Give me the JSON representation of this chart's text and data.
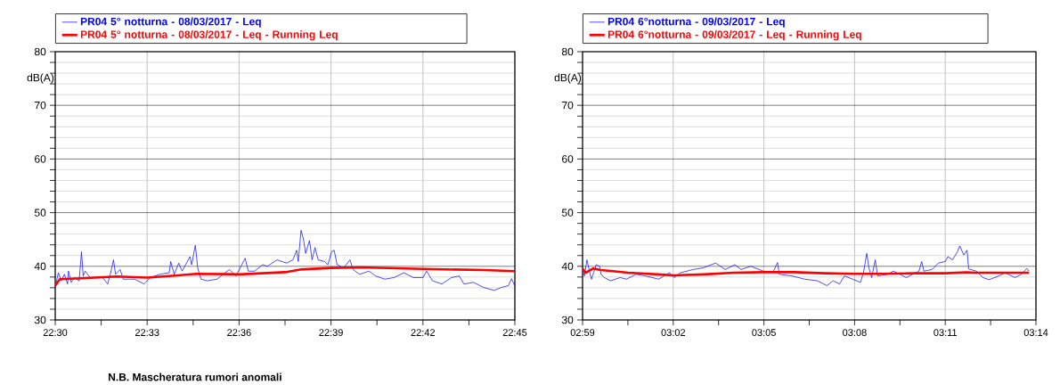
{
  "chart_data": [
    {
      "type": "line",
      "ylabel": "dB(A)",
      "legend": "top",
      "grid": true,
      "xlim": [
        22.5,
        22.75
      ],
      "ylim": [
        30,
        80
      ],
      "xticks": [
        {
          "value": 22.5,
          "label": "22:30"
        },
        {
          "value": 22.525,
          "label": null
        },
        {
          "value": 22.55,
          "label": "22:33"
        },
        {
          "value": 22.575,
          "label": null
        },
        {
          "value": 22.6,
          "label": "22:36"
        },
        {
          "value": 22.625,
          "label": null
        },
        {
          "value": 22.65,
          "label": "22:39"
        },
        {
          "value": 22.675,
          "label": null
        },
        {
          "value": 22.7,
          "label": "22:42"
        },
        {
          "value": 22.725,
          "label": null
        },
        {
          "value": 22.75,
          "label": "22:45"
        }
      ],
      "yticks": [
        30,
        {
          "value": 32,
          "label": null
        },
        {
          "value": 34,
          "label": null
        },
        {
          "value": 36,
          "label": null
        },
        {
          "value": 38,
          "label": null
        },
        40,
        {
          "value": 42,
          "label": null
        },
        {
          "value": 44,
          "label": null
        },
        {
          "value": 46,
          "label": null
        },
        {
          "value": 48,
          "label": null
        },
        50,
        {
          "value": 52,
          "label": null
        },
        {
          "value": 54,
          "label": null
        },
        {
          "value": 56,
          "label": null
        },
        {
          "value": 58,
          "label": null
        },
        60,
        {
          "value": 62,
          "label": null
        },
        {
          "value": 64,
          "label": null
        },
        {
          "value": 66,
          "label": null
        },
        {
          "value": 68,
          "label": null
        },
        70,
        {
          "value": 72,
          "label": null
        },
        {
          "value": 74,
          "label": null
        },
        {
          "value": 76,
          "label": null
        },
        {
          "value": 78,
          "label": null
        },
        80
      ],
      "annotations": [
        "N.B. Mascheratura rumori anomali"
      ],
      "series": [
        {
          "name": "PR04 5° notturna - 08/03/2017 - Leq",
          "color": "#0000ff",
          "x": [
            22.5,
            22.5017,
            22.5033,
            22.505,
            22.5067,
            22.5072,
            22.5087,
            22.5103,
            22.513,
            22.5143,
            22.5152,
            22.5163,
            22.519,
            22.5258,
            22.5285,
            22.5302,
            22.5317,
            22.5328,
            22.5353,
            22.537,
            22.5432,
            22.5483,
            22.5517,
            22.5568,
            22.562,
            22.5628,
            22.5647,
            22.5672,
            22.569,
            22.5733,
            22.5742,
            22.5762,
            22.5775,
            22.5793,
            22.5827,
            22.588,
            22.5913,
            22.5948,
            22.5983,
            22.6033,
            22.605,
            22.6085,
            22.6128,
            22.6153,
            22.6207,
            22.6258,
            22.6293,
            22.6313,
            22.6322,
            22.6337,
            22.635,
            22.6362,
            22.6383,
            22.6397,
            22.6413,
            22.643,
            22.6465,
            22.6483,
            22.6503,
            22.6517,
            22.6533,
            22.6568,
            22.6603,
            22.662,
            22.6655,
            22.6707,
            22.6742,
            22.6793,
            22.6843,
            22.6897,
            22.6948,
            22.7,
            22.702,
            22.7052,
            22.7103,
            22.7155,
            22.7198,
            22.7223,
            22.7275,
            22.7327,
            22.7387,
            22.743,
            22.7465,
            22.7482,
            22.75
          ],
          "values": [
            36.1,
            38.8,
            37.3,
            38.5,
            36.7,
            39.1,
            37.0,
            37.9,
            37.3,
            42.7,
            38.2,
            39.1,
            37.9,
            37.9,
            36.7,
            38.8,
            41.2,
            38.5,
            39.4,
            37.6,
            37.6,
            36.7,
            37.9,
            38.5,
            38.8,
            40.9,
            38.5,
            40.6,
            39.1,
            41.8,
            40.3,
            43.9,
            39.7,
            37.6,
            37.3,
            37.6,
            38.5,
            39.4,
            38.2,
            41.5,
            39.1,
            39.1,
            40.3,
            40.0,
            41.2,
            40.6,
            41.2,
            43.0,
            40.9,
            46.7,
            45.1,
            42.4,
            44.8,
            41.2,
            43.5,
            41.2,
            40.9,
            40.3,
            42.7,
            43.0,
            40.3,
            39.7,
            41.2,
            39.4,
            38.5,
            39.1,
            38.2,
            37.6,
            37.9,
            38.8,
            37.9,
            37.9,
            39.1,
            37.3,
            36.7,
            37.9,
            38.2,
            36.7,
            37.0,
            36.1,
            35.5,
            36.1,
            36.4,
            37.7,
            36.3
          ]
        },
        {
          "name": "PR04 5° notturna - 08/03/2017 - Leq - Running Leq",
          "color": "#ff0000",
          "x": [
            22.5,
            22.5025,
            22.5167,
            22.5333,
            22.55,
            22.5667,
            22.5767,
            22.6,
            22.625,
            22.6333,
            22.65,
            22.6667,
            22.7,
            22.7333,
            22.75
          ],
          "values": [
            36.4,
            37.6,
            37.8,
            38.1,
            37.9,
            38.3,
            38.6,
            38.5,
            38.9,
            39.4,
            39.7,
            39.8,
            39.5,
            39.3,
            39.1
          ]
        }
      ]
    },
    {
      "type": "line",
      "ylabel": "dB(A)",
      "legend": "top",
      "grid": true,
      "xlim": [
        2.9833,
        3.2333
      ],
      "ylim": [
        30,
        80
      ],
      "xticks": [
        {
          "value": 2.9833,
          "label": "02:59"
        },
        {
          "value": 3.0083,
          "label": null
        },
        {
          "value": 3.0333,
          "label": "03:02"
        },
        {
          "value": 3.0583,
          "label": null
        },
        {
          "value": 3.0833,
          "label": "03:05"
        },
        {
          "value": 3.1083,
          "label": null
        },
        {
          "value": 3.1333,
          "label": "03:08"
        },
        {
          "value": 3.1583,
          "label": null
        },
        {
          "value": 3.1833,
          "label": "03:11"
        },
        {
          "value": 3.2083,
          "label": null
        },
        {
          "value": 3.2333,
          "label": "03:14"
        }
      ],
      "yticks": [
        30,
        {
          "value": 32,
          "label": null
        },
        {
          "value": 34,
          "label": null
        },
        {
          "value": 36,
          "label": null
        },
        {
          "value": 38,
          "label": null
        },
        40,
        {
          "value": 42,
          "label": null
        },
        {
          "value": 44,
          "label": null
        },
        {
          "value": 46,
          "label": null
        },
        {
          "value": 48,
          "label": null
        },
        50,
        {
          "value": 52,
          "label": null
        },
        {
          "value": 54,
          "label": null
        },
        {
          "value": 56,
          "label": null
        },
        {
          "value": 58,
          "label": null
        },
        60,
        {
          "value": 62,
          "label": null
        },
        {
          "value": 64,
          "label": null
        },
        {
          "value": 66,
          "label": null
        },
        {
          "value": 68,
          "label": null
        },
        70,
        {
          "value": 72,
          "label": null
        },
        {
          "value": 74,
          "label": null
        },
        {
          "value": 76,
          "label": null
        },
        {
          "value": 78,
          "label": null
        },
        80
      ],
      "series": [
        {
          "name": "PR04 6°notturna - 09/03/2017 - Leq",
          "color": "#0000ff",
          "x": [
            2.9833,
            2.9843,
            2.9857,
            2.9873,
            2.9882,
            2.9897,
            2.9908,
            2.9927,
            2.9935,
            2.9953,
            2.9988,
            3.004,
            3.0075,
            3.0128,
            3.018,
            3.0252,
            3.0312,
            3.0338,
            3.0373,
            3.0443,
            3.0497,
            3.0567,
            3.062,
            3.0673,
            3.0707,
            3.076,
            3.083,
            3.0882,
            3.0908,
            3.0918,
            3.0988,
            3.1058,
            3.1128,
            3.118,
            3.1215,
            3.125,
            3.1277,
            3.1322,
            3.1365,
            3.1382,
            3.14,
            3.1412,
            3.1427,
            3.1447,
            3.146,
            3.1513,
            3.1548,
            3.1618,
            3.1688,
            3.1703,
            3.1715,
            3.176,
            3.1795,
            3.1833,
            3.1847,
            3.1873,
            3.19,
            3.1913,
            3.1935,
            3.1953,
            3.1962,
            3.2005,
            3.204,
            3.2075,
            3.2128,
            3.2163,
            3.2217,
            3.2252,
            3.2283,
            3.2295
          ],
          "values": [
            39.7,
            38.2,
            41.2,
            38.8,
            37.6,
            39.1,
            40.3,
            40.0,
            38.5,
            37.9,
            37.3,
            37.9,
            37.6,
            38.5,
            38.2,
            37.6,
            38.8,
            37.9,
            38.8,
            39.4,
            39.7,
            40.6,
            39.4,
            40.3,
            39.4,
            40.0,
            39.1,
            38.8,
            40.7,
            38.5,
            38.2,
            37.6,
            37.3,
            36.4,
            37.3,
            36.7,
            38.2,
            37.6,
            37.0,
            38.8,
            42.4,
            39.7,
            37.9,
            41.2,
            38.2,
            38.5,
            39.1,
            37.9,
            39.1,
            40.9,
            39.1,
            39.4,
            40.6,
            40.9,
            41.8,
            41.2,
            42.7,
            43.8,
            42.1,
            43.0,
            39.5,
            39.1,
            37.9,
            37.5,
            38.2,
            38.8,
            37.9,
            38.5,
            39.6,
            39.1
          ]
        },
        {
          "name": "PR04 6°notturna - 09/03/2017 - Leq - Running Leq",
          "color": "#ff0000",
          "x": [
            2.9833,
            2.985,
            2.9892,
            2.9933,
            3.0,
            3.0083,
            3.025,
            3.0333,
            3.05,
            3.0667,
            3.0833,
            3.1,
            3.1167,
            3.1333,
            3.15,
            3.1667,
            3.1833,
            3.195,
            3.2,
            3.2295
          ],
          "values": [
            39.6,
            38.8,
            39.6,
            39.3,
            39.1,
            38.8,
            38.5,
            38.3,
            38.5,
            38.8,
            38.9,
            38.9,
            38.7,
            38.6,
            38.6,
            38.7,
            38.7,
            38.9,
            38.8,
            38.8
          ]
        }
      ]
    }
  ]
}
